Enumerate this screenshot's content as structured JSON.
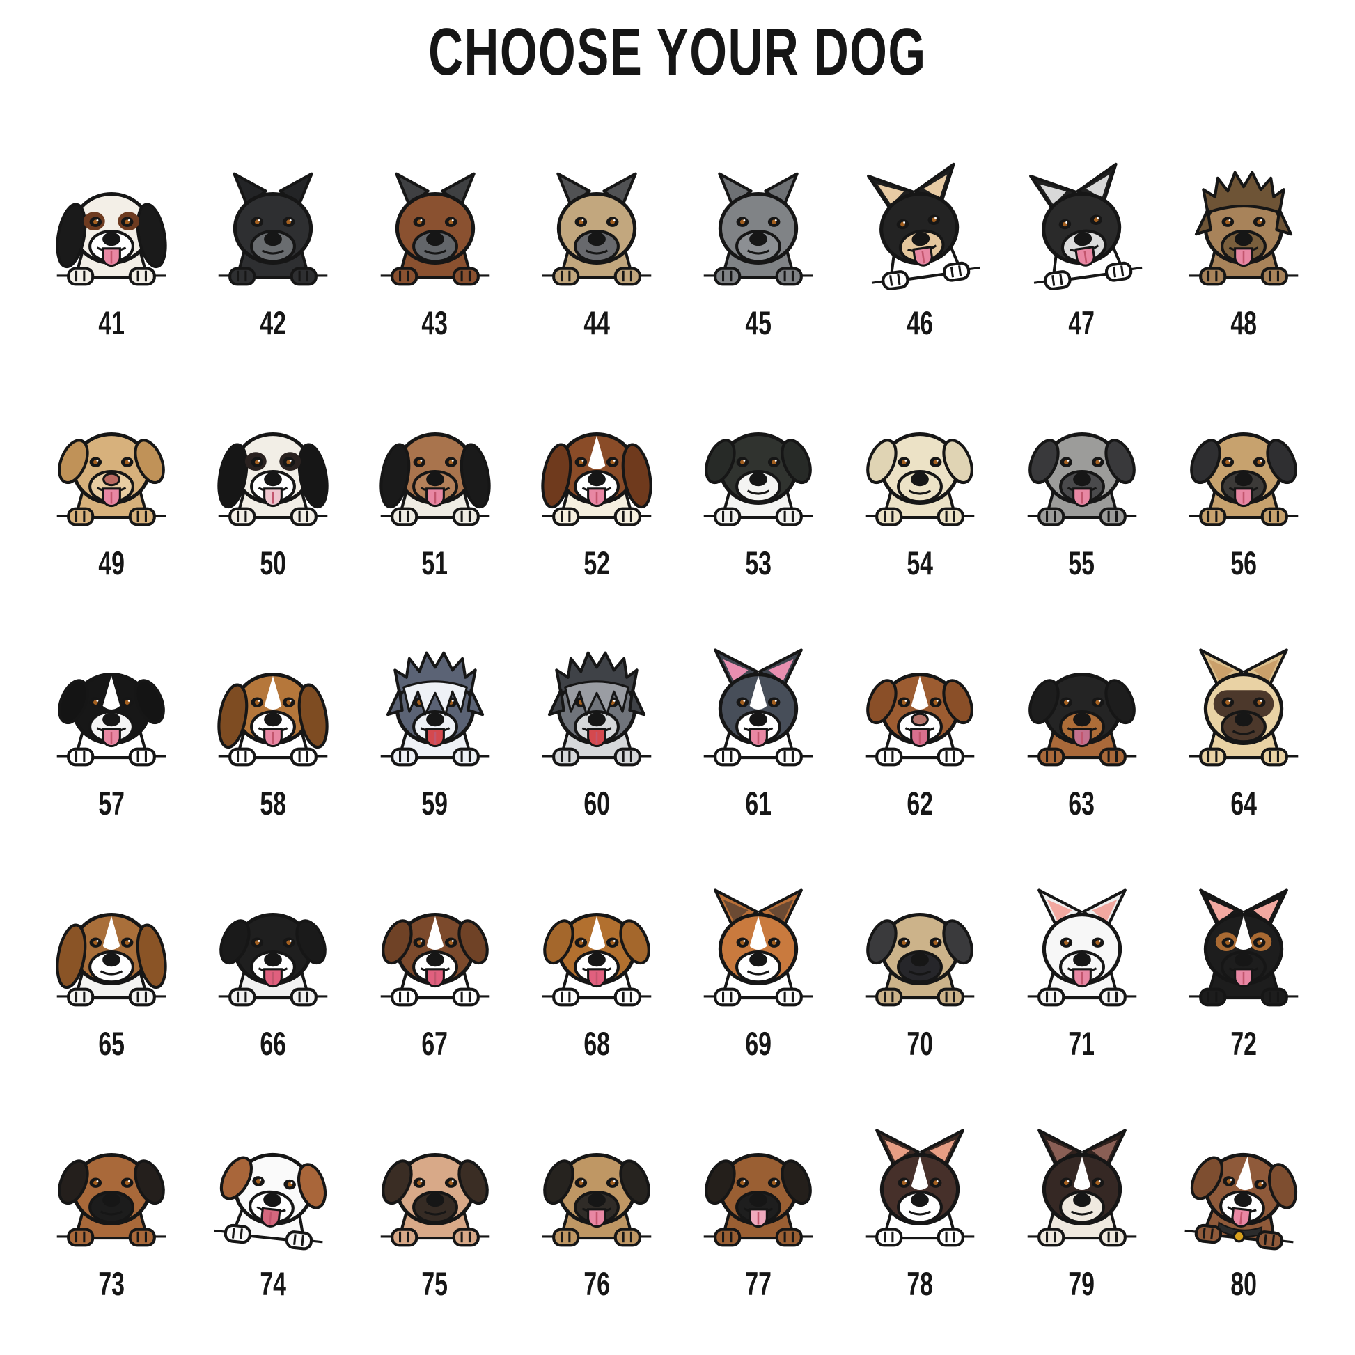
{
  "title": "CHOOSE YOUR DOG",
  "ink_color": "#161616",
  "background_color": "#ffffff",
  "grid": {
    "columns": 8,
    "rows": 5,
    "first_number": 41,
    "last_number": 80
  },
  "dogs": [
    {
      "label": "41",
      "breed": "cavalier-king-charles-tricolor",
      "ear": "long",
      "head": "#f3efe7",
      "earC": "#1a1a1a",
      "muzzle": "#ffffff",
      "chest": "#f3efe7",
      "tongue": true,
      "patch": "#6e3b20"
    },
    {
      "label": "42",
      "breed": "cane-corso-black",
      "ear": "crop",
      "head": "#2e2f31",
      "earC": "#232426",
      "muzzle": "#6a6d70",
      "chest": "#2e2f31",
      "tongue": false
    },
    {
      "label": "43",
      "breed": "cane-corso-chestnut",
      "ear": "crop",
      "head": "#8a5130",
      "earC": "#3f4042",
      "muzzle": "#63666a",
      "chest": "#8a5130",
      "tongue": false
    },
    {
      "label": "44",
      "breed": "cane-corso-fawn",
      "ear": "crop",
      "head": "#c2a77e",
      "earC": "#515254",
      "muzzle": "#68696d",
      "chest": "#c2a77e",
      "tongue": false
    },
    {
      "label": "45",
      "breed": "cane-corso-grey",
      "ear": "crop",
      "head": "#808386",
      "earC": "#6e7174",
      "muzzle": "#8c8f93",
      "chest": "#808386",
      "tongue": false
    },
    {
      "label": "46",
      "breed": "chihuahua-longhair-black-tan",
      "ear": "up",
      "head": "#232323",
      "earC": "#1e1e1e",
      "earInner": "#e8cba4",
      "muzzle": "#e4c69c",
      "chest": "#ffffff",
      "tongue": true,
      "tilt": -8
    },
    {
      "label": "47",
      "breed": "chihuahua-longhair-black-grey",
      "ear": "up",
      "head": "#2a2a2a",
      "earC": "#202020",
      "earInner": "#d8d8d8",
      "muzzle": "#dcdcdc",
      "chest": "#ffffff",
      "tongue": true,
      "tilt": -8
    },
    {
      "label": "48",
      "breed": "cairn-terrier",
      "ear": "shaggy",
      "head": "#a8835a",
      "earC": "#6e5436",
      "muzzle": "#7a5f3d",
      "chest": "#a8835a",
      "tongue": true
    },
    {
      "label": "49",
      "breed": "labrador-retriever-yellow",
      "ear": "drop",
      "head": "#d7b17c",
      "earC": "#c09258",
      "muzzle": "#e8cda2",
      "chest": "#d7b17c",
      "nose": "#b96a62",
      "tongue": true
    },
    {
      "label": "50",
      "breed": "cavalier-king-charles-tricolor",
      "ear": "long",
      "head": "#f2eee6",
      "earC": "#161616",
      "muzzle": "#ffffff",
      "chest": "#f2eee6",
      "tongue": true,
      "tongueC": "#eec5ce",
      "patch": "#2a2220"
    },
    {
      "label": "51",
      "breed": "cavalier-king-charles-black-tan",
      "ear": "long",
      "head": "#a9744d",
      "earC": "#1a1a1a",
      "muzzle": "#b5815a",
      "chest": "#efece4",
      "tongue": true
    },
    {
      "label": "52",
      "breed": "cavalier-king-charles-blenheim",
      "ear": "long",
      "head": "#8a4c28",
      "earC": "#6f3a1d",
      "muzzle": "#ffffff",
      "chest": "#f5efdf",
      "tongue": true,
      "blaze": "#ffffff"
    },
    {
      "label": "53",
      "breed": "central-asian-shepherd-black-white",
      "ear": "drop",
      "head": "#30332f",
      "earC": "#272a27",
      "muzzle": "#f4f4f2",
      "chest": "#f4f4f2",
      "tongue": false
    },
    {
      "label": "54",
      "breed": "central-asian-shepherd-cream",
      "ear": "drop",
      "head": "#ece2c6",
      "earC": "#e0d4b4",
      "muzzle": "#ece2c6",
      "chest": "#ece2c6",
      "tongue": false
    },
    {
      "label": "55",
      "breed": "border-terrier-grizzle",
      "ear": "drop",
      "head": "#9c9c9a",
      "earC": "#39393b",
      "muzzle": "#4a4a4c",
      "chest": "#9c9c9a",
      "tongue": true
    },
    {
      "label": "56",
      "breed": "border-terrier-tan",
      "ear": "drop",
      "head": "#c7a26e",
      "earC": "#2f2f31",
      "muzzle": "#3c3a38",
      "chest": "#c7a26e",
      "tongue": true
    },
    {
      "label": "57",
      "breed": "border-collie-black-white",
      "ear": "drop",
      "head": "#171717",
      "earC": "#141414",
      "muzzle": "#f5f5f5",
      "chest": "#ffffff",
      "tongue": true,
      "blaze": "#ffffff"
    },
    {
      "label": "58",
      "breed": "beagle",
      "ear": "long",
      "head": "#b5773b",
      "earC": "#7e4c22",
      "muzzle": "#ffffff",
      "chest": "#ffffff",
      "tongue": true,
      "blaze": "#ffffff"
    },
    {
      "label": "59",
      "breed": "old-english-sheepdog",
      "ear": "shaggy",
      "head": "#5b6375",
      "earC": "#5b6375",
      "muzzle": "#eef1f6",
      "chest": "#eef1f6",
      "tongue": true,
      "tongueC": "#d4494e",
      "fringe": "#eef1f6"
    },
    {
      "label": "60",
      "breed": "bearded-collie-grey",
      "ear": "shaggy",
      "head": "#70747b",
      "earC": "#3f4247",
      "muzzle": "#d6d8da",
      "chest": "#d6d8da",
      "tongue": true,
      "tongueC": "#d4494e",
      "fringe": "#9a9da3"
    },
    {
      "label": "61",
      "breed": "border-collie-slate",
      "ear": "up",
      "head": "#474e59",
      "earC": "#3e444e",
      "earInner": "#e98fb1",
      "muzzle": "#ffffff",
      "chest": "#ffffff",
      "tongue": true,
      "blaze": "#ffffff"
    },
    {
      "label": "62",
      "breed": "australian-shepherd-red-white",
      "ear": "drop",
      "head": "#9c5c31",
      "earC": "#8a4f28",
      "muzzle": "#ffffff",
      "chest": "#ffffff",
      "tongue": true,
      "tongueC": "#d96f8e",
      "nose": "#b5746b",
      "blaze": "#ffffff"
    },
    {
      "label": "63",
      "breed": "beauceron-black-tan",
      "ear": "drop",
      "head": "#242424",
      "earC": "#1d1d1d",
      "muzzle": "#ad6d38",
      "chest": "#a9693a",
      "tongue": true,
      "tongueC": "#c4708d"
    },
    {
      "label": "64",
      "breed": "belgian-malinois",
      "ear": "up",
      "head": "#e9d2a4",
      "earC": "#dcc08d",
      "earInner": "#caa06b",
      "muzzle": "#4c382b",
      "chest": "#e9d2a4",
      "tongue": false,
      "mask": "#4c382b"
    },
    {
      "label": "65",
      "breed": "basset-hound",
      "ear": "long",
      "head": "#a96f3a",
      "earC": "#8a5426",
      "muzzle": "#ffffff",
      "chest": "#f4f4f2",
      "tongue": false,
      "blaze": "#ffffff"
    },
    {
      "label": "66",
      "breed": "saint-bernard-black-white",
      "ear": "drop",
      "head": "#1f1f1f",
      "earC": "#1a1a1a",
      "muzzle": "#ffffff",
      "chest": "#f2f2f2",
      "tongue": true,
      "tongueC": "#e0607e"
    },
    {
      "label": "67",
      "breed": "saint-bernard-brown-white",
      "ear": "drop",
      "head": "#7c4a2c",
      "earC": "#6f4226",
      "muzzle": "#ffffff",
      "chest": "#ffffff",
      "tongue": true,
      "tongueC": "#e0607e",
      "blaze": "#ffffff"
    },
    {
      "label": "68",
      "breed": "saint-bernard-orange-white",
      "ear": "drop",
      "head": "#b2702f",
      "earC": "#a4672c",
      "muzzle": "#ffffff",
      "chest": "#ffffff",
      "tongue": true,
      "tongueC": "#e0607e",
      "blaze": "#ffffff"
    },
    {
      "label": "69",
      "breed": "basenji-red-white",
      "ear": "up",
      "head": "#c97a3e",
      "earC": "#b96f37",
      "earInner": "#6b4a33",
      "muzzle": "#ffffff",
      "chest": "#ffffff",
      "tongue": false,
      "blaze": "#ffffff"
    },
    {
      "label": "70",
      "breed": "bullmastiff-fawn",
      "ear": "drop",
      "head": "#ccb38a",
      "earC": "#3a3a3c",
      "muzzle": "#26262a",
      "chest": "#ccb38a",
      "tongue": false
    },
    {
      "label": "71",
      "breed": "bull-terrier-white",
      "ear": "up",
      "head": "#f7f7f7",
      "earC": "#efefef",
      "earInner": "#f2a8a0",
      "muzzle": "#f7f7f7",
      "chest": "#f7f7f7",
      "tongue": true
    },
    {
      "label": "72",
      "breed": "bull-terrier-tricolor",
      "ear": "up",
      "head": "#1d1d1d",
      "earC": "#181818",
      "earInner": "#f2a8a0",
      "muzzle": "#1d1d1d",
      "chest": "#1d1d1d",
      "tongue": true,
      "blaze": "#ffffff",
      "patch": "#a96a33"
    },
    {
      "label": "73",
      "breed": "boxer-fawn-black-mask",
      "ear": "drop",
      "head": "#a9693a",
      "earC": "#241f1c",
      "muzzle": "#1c1c1c",
      "chest": "#a9693a",
      "tongue": false
    },
    {
      "label": "74",
      "breed": "borzoi-white-red",
      "ear": "drop",
      "head": "#fafafa",
      "earC": "#a9663a",
      "muzzle": "#ffffff",
      "chest": "#fafafa",
      "tongue": true,
      "tongueC": "#d4687e",
      "tilt": 6
    },
    {
      "label": "75",
      "breed": "boxer-light-fawn",
      "ear": "drop",
      "head": "#d8a988",
      "earC": "#3a2d24",
      "muzzle": "#352b24",
      "chest": "#d8a988",
      "tongue": false
    },
    {
      "label": "76",
      "breed": "border-terrier-dark-muzzle",
      "ear": "drop",
      "head": "#bf9764",
      "earC": "#26231f",
      "muzzle": "#2f2b27",
      "chest": "#bf9764",
      "tongue": true
    },
    {
      "label": "77",
      "breed": "boxer-brown-black-mask",
      "ear": "drop",
      "head": "#9a5f33",
      "earC": "#241f1b",
      "muzzle": "#1e1e1e",
      "chest": "#9a5f33",
      "tongue": true,
      "tongueC": "#efa9bd"
    },
    {
      "label": "78",
      "breed": "boston-terrier-brown-white",
      "ear": "up",
      "head": "#46302a",
      "earC": "#3c2a24",
      "earInner": "#e79e84",
      "muzzle": "#ffffff",
      "chest": "#ffffff",
      "tongue": false,
      "blaze": "#ffffff"
    },
    {
      "label": "79",
      "breed": "boston-terrier-dark",
      "ear": "up",
      "head": "#352824",
      "earC": "#2e211d",
      "earInner": "#8a5f55",
      "muzzle": "#efe9df",
      "chest": "#efe9df",
      "tongue": false,
      "blaze": "#ffffff"
    },
    {
      "label": "80",
      "breed": "boxer-brown-white-collar",
      "ear": "drop",
      "head": "#8f5a3a",
      "earC": "#7e4e30",
      "muzzle": "#ffffff",
      "chest": "#8f5a3a",
      "tongue": true,
      "blaze": "#ffffff",
      "collar": "#d8a01d",
      "tilt": 6
    }
  ]
}
